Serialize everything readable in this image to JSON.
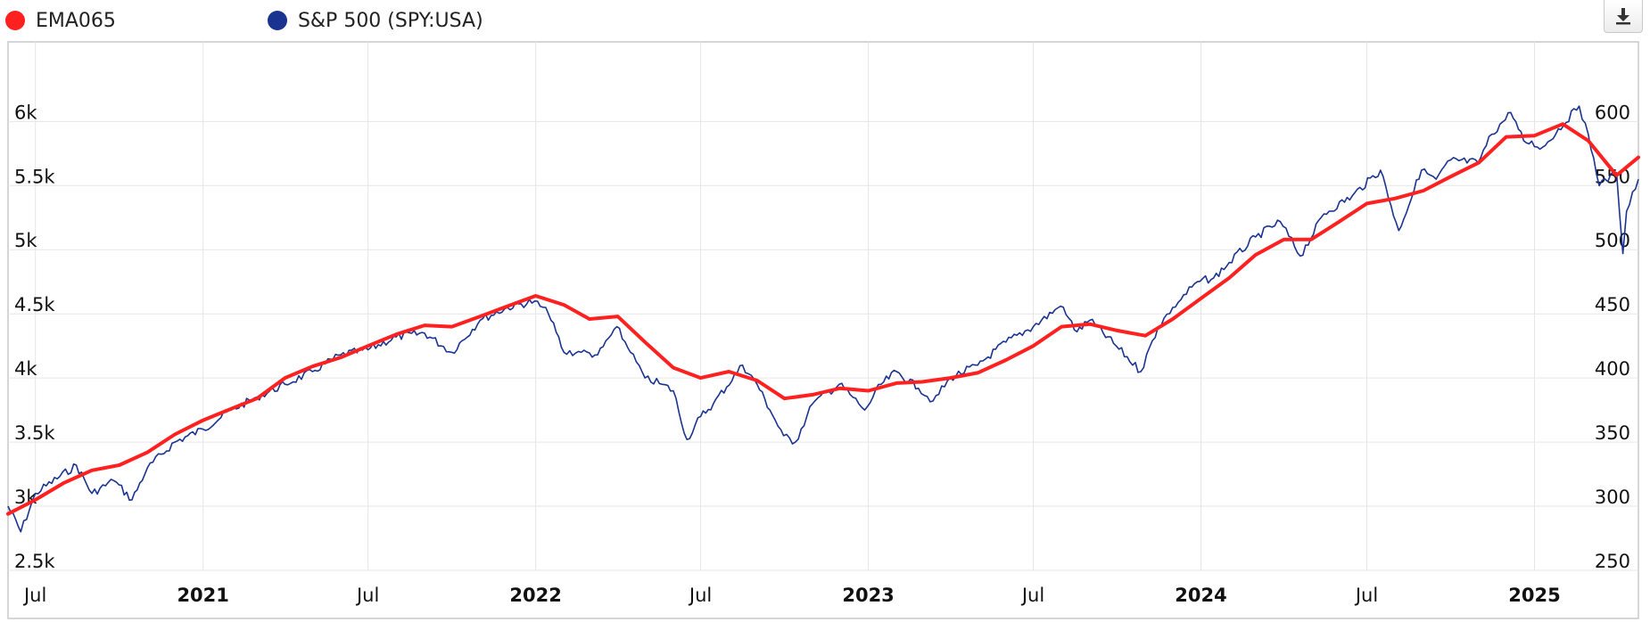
{
  "legend": [
    {
      "name": "EMA065",
      "color": "#ff2020"
    },
    {
      "name": "S&P 500 (SPY:USA)",
      "color": "#1a3391"
    }
  ],
  "toolbar": {
    "download_icon": "download-icon"
  },
  "chart_data": {
    "type": "line",
    "grid": true,
    "x_range": [
      "2020-06-01",
      "2025-04-25"
    ],
    "x_ticks": [
      {
        "label": "Jul",
        "date": "2020-07-01",
        "bold": false
      },
      {
        "label": "2021",
        "date": "2021-01-01",
        "bold": true
      },
      {
        "label": "Jul",
        "date": "2021-07-01",
        "bold": false
      },
      {
        "label": "2022",
        "date": "2022-01-01",
        "bold": true
      },
      {
        "label": "Jul",
        "date": "2022-07-01",
        "bold": false
      },
      {
        "label": "2023",
        "date": "2023-01-01",
        "bold": true
      },
      {
        "label": "Jul",
        "date": "2023-07-01",
        "bold": false
      },
      {
        "label": "2024",
        "date": "2024-01-01",
        "bold": true
      },
      {
        "label": "Jul",
        "date": "2024-07-01",
        "bold": false
      },
      {
        "label": "2025",
        "date": "2025-01-01",
        "bold": true
      }
    ],
    "y_left": {
      "range": [
        2500,
        6600
      ],
      "ticks": [
        {
          "value": 2500,
          "label": "2.5k"
        },
        {
          "value": 3000,
          "label": "3k"
        },
        {
          "value": 3500,
          "label": "3.5k"
        },
        {
          "value": 4000,
          "label": "4k"
        },
        {
          "value": 4500,
          "label": "4.5k"
        },
        {
          "value": 5000,
          "label": "5k"
        },
        {
          "value": 5500,
          "label": "5.5k"
        },
        {
          "value": 6000,
          "label": "6k"
        }
      ]
    },
    "y_right": {
      "range": [
        250,
        660
      ],
      "ticks": [
        {
          "value": 250,
          "label": "250"
        },
        {
          "value": 300,
          "label": "300"
        },
        {
          "value": 350,
          "label": "350"
        },
        {
          "value": 400,
          "label": "400"
        },
        {
          "value": 450,
          "label": "450"
        },
        {
          "value": 500,
          "label": "500"
        },
        {
          "value": 550,
          "label": "550"
        },
        {
          "value": 600,
          "label": "600"
        }
      ]
    },
    "series": [
      {
        "name": "EMA065",
        "axis": "left",
        "color": "#ff2020",
        "points": [
          [
            "2020-06-01",
            2940
          ],
          [
            "2020-07-01",
            3050
          ],
          [
            "2020-08-01",
            3180
          ],
          [
            "2020-09-01",
            3280
          ],
          [
            "2020-10-01",
            3320
          ],
          [
            "2020-11-01",
            3420
          ],
          [
            "2020-12-01",
            3560
          ],
          [
            "2021-01-01",
            3670
          ],
          [
            "2021-02-01",
            3760
          ],
          [
            "2021-03-01",
            3840
          ],
          [
            "2021-04-01",
            4000
          ],
          [
            "2021-05-01",
            4090
          ],
          [
            "2021-06-01",
            4160
          ],
          [
            "2021-07-01",
            4250
          ],
          [
            "2021-08-01",
            4340
          ],
          [
            "2021-09-01",
            4410
          ],
          [
            "2021-10-01",
            4400
          ],
          [
            "2021-11-01",
            4480
          ],
          [
            "2021-12-01",
            4560
          ],
          [
            "2022-01-01",
            4640
          ],
          [
            "2022-02-01",
            4570
          ],
          [
            "2022-03-01",
            4460
          ],
          [
            "2022-04-01",
            4480
          ],
          [
            "2022-05-01",
            4280
          ],
          [
            "2022-06-01",
            4080
          ],
          [
            "2022-07-01",
            4000
          ],
          [
            "2022-08-01",
            4050
          ],
          [
            "2022-09-01",
            3980
          ],
          [
            "2022-10-01",
            3840
          ],
          [
            "2022-11-01",
            3870
          ],
          [
            "2022-12-01",
            3920
          ],
          [
            "2023-01-01",
            3900
          ],
          [
            "2023-02-01",
            3960
          ],
          [
            "2023-03-01",
            3970
          ],
          [
            "2023-04-01",
            4000
          ],
          [
            "2023-05-01",
            4040
          ],
          [
            "2023-06-01",
            4140
          ],
          [
            "2023-07-01",
            4250
          ],
          [
            "2023-08-01",
            4400
          ],
          [
            "2023-09-01",
            4420
          ],
          [
            "2023-10-01",
            4370
          ],
          [
            "2023-11-01",
            4330
          ],
          [
            "2023-12-01",
            4460
          ],
          [
            "2024-01-01",
            4620
          ],
          [
            "2024-02-01",
            4780
          ],
          [
            "2024-03-01",
            4960
          ],
          [
            "2024-04-01",
            5080
          ],
          [
            "2024-05-01",
            5080
          ],
          [
            "2024-06-01",
            5220
          ],
          [
            "2024-07-01",
            5360
          ],
          [
            "2024-08-01",
            5400
          ],
          [
            "2024-09-01",
            5460
          ],
          [
            "2024-10-01",
            5570
          ],
          [
            "2024-11-01",
            5680
          ],
          [
            "2024-12-01",
            5880
          ],
          [
            "2025-01-01",
            5890
          ],
          [
            "2025-02-01",
            5980
          ],
          [
            "2025-03-01",
            5850
          ],
          [
            "2025-04-01",
            5580
          ],
          [
            "2025-04-25",
            5720
          ]
        ]
      },
      {
        "name": "S&P 500 (SPY:USA)",
        "axis": "right",
        "color": "#1a3391",
        "points": [
          [
            "2020-06-01",
            300
          ],
          [
            "2020-06-15",
            280
          ],
          [
            "2020-07-01",
            310
          ],
          [
            "2020-08-15",
            332
          ],
          [
            "2020-09-01",
            310
          ],
          [
            "2020-09-25",
            320
          ],
          [
            "2020-10-15",
            305
          ],
          [
            "2020-11-01",
            330
          ],
          [
            "2020-12-01",
            350
          ],
          [
            "2021-01-01",
            360
          ],
          [
            "2021-02-01",
            375
          ],
          [
            "2021-03-01",
            385
          ],
          [
            "2021-04-01",
            395
          ],
          [
            "2021-05-01",
            405
          ],
          [
            "2021-06-01",
            418
          ],
          [
            "2021-07-01",
            422
          ],
          [
            "2021-08-01",
            432
          ],
          [
            "2021-09-01",
            435
          ],
          [
            "2021-10-01",
            420
          ],
          [
            "2021-11-01",
            445
          ],
          [
            "2021-12-01",
            455
          ],
          [
            "2021-12-31",
            460
          ],
          [
            "2022-01-15",
            450
          ],
          [
            "2022-02-01",
            420
          ],
          [
            "2022-02-20",
            420
          ],
          [
            "2022-03-10",
            418
          ],
          [
            "2022-03-31",
            440
          ],
          [
            "2022-04-15",
            420
          ],
          [
            "2022-05-01",
            400
          ],
          [
            "2022-05-20",
            395
          ],
          [
            "2022-06-01",
            390
          ],
          [
            "2022-06-16",
            352
          ],
          [
            "2022-07-01",
            370
          ],
          [
            "2022-07-15",
            380
          ],
          [
            "2022-08-16",
            410
          ],
          [
            "2022-09-01",
            395
          ],
          [
            "2022-09-15",
            375
          ],
          [
            "2022-09-30",
            355
          ],
          [
            "2022-10-13",
            350
          ],
          [
            "2022-11-01",
            380
          ],
          [
            "2022-11-30",
            395
          ],
          [
            "2022-12-15",
            385
          ],
          [
            "2022-12-28",
            375
          ],
          [
            "2023-01-15",
            395
          ],
          [
            "2023-02-01",
            405
          ],
          [
            "2023-02-25",
            392
          ],
          [
            "2023-03-13",
            382
          ],
          [
            "2023-04-01",
            400
          ],
          [
            "2023-05-01",
            410
          ],
          [
            "2023-06-01",
            428
          ],
          [
            "2023-07-01",
            440
          ],
          [
            "2023-07-31",
            456
          ],
          [
            "2023-08-18",
            436
          ],
          [
            "2023-09-01",
            445
          ],
          [
            "2023-09-30",
            425
          ],
          [
            "2023-10-27",
            405
          ],
          [
            "2023-11-15",
            440
          ],
          [
            "2023-12-01",
            455
          ],
          [
            "2023-12-28",
            475
          ],
          [
            "2024-01-15",
            478
          ],
          [
            "2024-02-01",
            490
          ],
          [
            "2024-03-01",
            510
          ],
          [
            "2024-03-28",
            522
          ],
          [
            "2024-04-19",
            495
          ],
          [
            "2024-05-15",
            528
          ],
          [
            "2024-06-15",
            542
          ],
          [
            "2024-07-16",
            562
          ],
          [
            "2024-08-05",
            515
          ],
          [
            "2024-08-30",
            562
          ],
          [
            "2024-09-15",
            555
          ],
          [
            "2024-10-01",
            570
          ],
          [
            "2024-10-31",
            568
          ],
          [
            "2024-11-15",
            590
          ],
          [
            "2024-12-06",
            607
          ],
          [
            "2024-12-20",
            585
          ],
          [
            "2025-01-10",
            580
          ],
          [
            "2025-02-19",
            612
          ],
          [
            "2025-03-01",
            590
          ],
          [
            "2025-03-13",
            550
          ],
          [
            "2025-04-01",
            560
          ],
          [
            "2025-04-08",
            497
          ],
          [
            "2025-04-12",
            530
          ],
          [
            "2025-04-25",
            555
          ]
        ]
      }
    ]
  }
}
